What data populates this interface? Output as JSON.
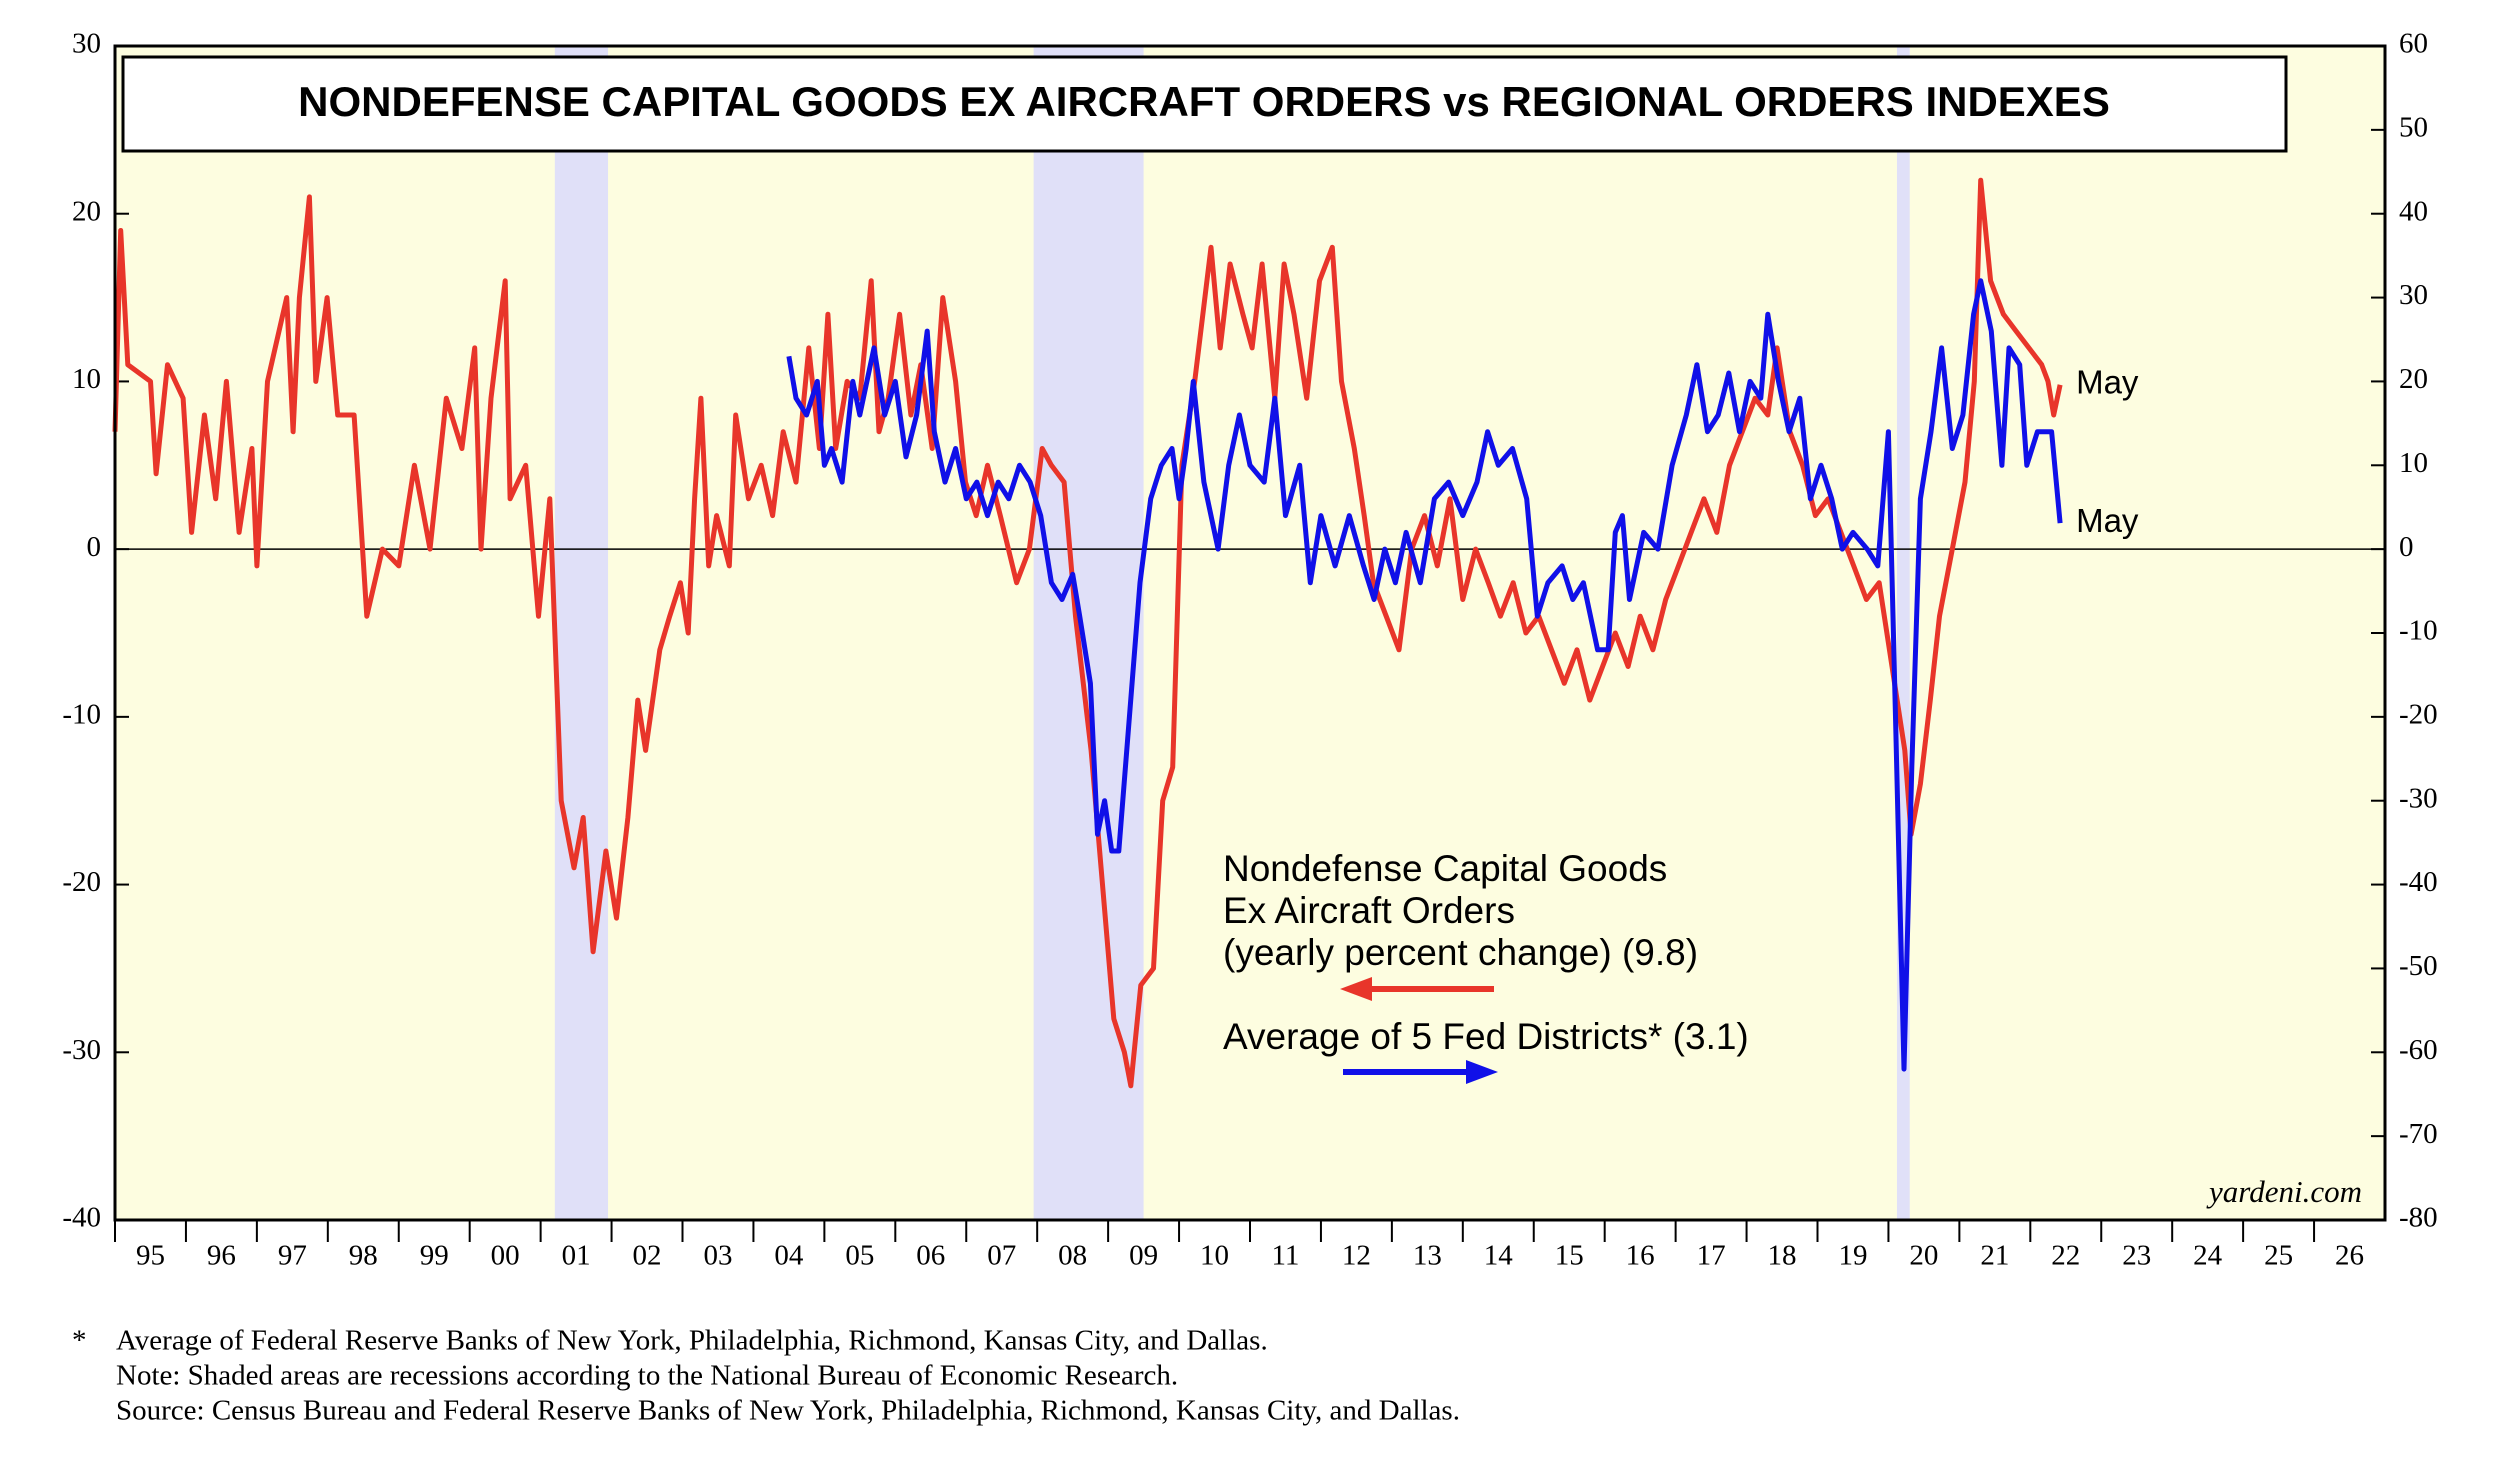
{
  "chart_data": {
    "type": "line",
    "title": "NONDEFENSE CAPITAL GOODS EX AIRCRAFT ORDERS vs REGIONAL ORDERS INDEXES",
    "xlim": [
      1995,
      2027
    ],
    "xticks": [
      {
        "value": 1995,
        "label": "95"
      },
      {
        "value": 1996,
        "label": "96"
      },
      {
        "value": 1997,
        "label": "97"
      },
      {
        "value": 1998,
        "label": "98"
      },
      {
        "value": 1999,
        "label": "99"
      },
      {
        "value": 2000,
        "label": "00"
      },
      {
        "value": 2001,
        "label": "01"
      },
      {
        "value": 2002,
        "label": "02"
      },
      {
        "value": 2003,
        "label": "03"
      },
      {
        "value": 2004,
        "label": "04"
      },
      {
        "value": 2005,
        "label": "05"
      },
      {
        "value": 2006,
        "label": "06"
      },
      {
        "value": 2007,
        "label": "07"
      },
      {
        "value": 2008,
        "label": "08"
      },
      {
        "value": 2009,
        "label": "09"
      },
      {
        "value": 2010,
        "label": "10"
      },
      {
        "value": 2011,
        "label": "11"
      },
      {
        "value": 2012,
        "label": "12"
      },
      {
        "value": 2013,
        "label": "13"
      },
      {
        "value": 2014,
        "label": "14"
      },
      {
        "value": 2015,
        "label": "15"
      },
      {
        "value": 2016,
        "label": "16"
      },
      {
        "value": 2017,
        "label": "17"
      },
      {
        "value": 2018,
        "label": "18"
      },
      {
        "value": 2019,
        "label": "19"
      },
      {
        "value": 2020,
        "label": "20"
      },
      {
        "value": 2021,
        "label": "21"
      },
      {
        "value": 2022,
        "label": "22"
      },
      {
        "value": 2023,
        "label": "23"
      },
      {
        "value": 2024,
        "label": "24"
      },
      {
        "value": 2025,
        "label": "25"
      },
      {
        "value": 2026,
        "label": "26"
      }
    ],
    "ylim": [
      -40,
      30
    ],
    "yticks": [
      -40,
      -30,
      -20,
      -10,
      0,
      10,
      20,
      30
    ],
    "y2lim": [
      -80,
      60
    ],
    "y2ticks": [
      -80,
      -70,
      -60,
      -50,
      -40,
      -30,
      -20,
      -10,
      0,
      10,
      20,
      30,
      40,
      50,
      60
    ],
    "hline": 0,
    "recessions": [
      [
        2001.2,
        2001.95
      ],
      [
        2007.95,
        2009.5
      ],
      [
        2020.12,
        2020.3
      ]
    ],
    "recession_color": "#e0e0f8",
    "background": "#fdfde0",
    "series": [
      {
        "name": [
          "Nondefense Capital Goods",
          "Ex Aircraft Orders",
          "(yearly percent change) (9.8)"
        ],
        "color": "#e8352a",
        "end_label": "May",
        "x": [
          1995.0,
          1995.08,
          1995.18,
          1995.5,
          1995.58,
          1995.74,
          1995.96,
          1996.08,
          1996.26,
          1996.42,
          1996.57,
          1996.75,
          1996.93,
          1997.0,
          1997.15,
          1997.42,
          1997.51,
          1997.6,
          1997.74,
          1997.83,
          1997.99,
          1998.14,
          1998.37,
          1998.55,
          1998.77,
          1999.0,
          1999.22,
          1999.44,
          1999.67,
          1999.89,
          2000.07,
          2000.16,
          2000.3,
          2000.5,
          2000.57,
          2000.79,
          2000.97,
          2001.13,
          2001.29,
          2001.47,
          2001.6,
          2001.74,
          2001.92,
          2002.07,
          2002.23,
          2002.37,
          2002.48,
          2002.68,
          2002.82,
          2002.97,
          2003.08,
          2003.17,
          2003.26,
          2003.37,
          2003.48,
          2003.66,
          2003.75,
          2003.93,
          2004.11,
          2004.27,
          2004.42,
          2004.6,
          2004.78,
          2004.93,
          2005.05,
          2005.16,
          2005.32,
          2005.5,
          2005.66,
          2005.77,
          2005.9,
          2006.06,
          2006.22,
          2006.36,
          2006.52,
          2006.67,
          2006.85,
          2006.99,
          2007.14,
          2007.3,
          2007.48,
          2007.71,
          2007.89,
          2008.07,
          2008.2,
          2008.38,
          2008.54,
          2008.76,
          2008.92,
          2009.08,
          2009.23,
          2009.32,
          2009.46,
          2009.64,
          2009.77,
          2009.91,
          2010.04,
          2010.22,
          2010.45,
          2010.58,
          2010.72,
          2010.9,
          2011.03,
          2011.17,
          2011.35,
          2011.48,
          2011.62,
          2011.8,
          2011.98,
          2012.16,
          2012.29,
          2012.47,
          2012.61,
          2012.74,
          2012.92,
          2013.1,
          2013.28,
          2013.46,
          2013.64,
          2013.82,
          2014.0,
          2014.18,
          2014.36,
          2014.53,
          2014.71,
          2014.89,
          2015.07,
          2015.25,
          2015.43,
          2015.61,
          2015.79,
          2015.97,
          2016.15,
          2016.33,
          2016.5,
          2016.68,
          2016.86,
          2017.04,
          2017.22,
          2017.4,
          2017.58,
          2017.76,
          2017.94,
          2018.12,
          2018.3,
          2018.43,
          2018.61,
          2018.79,
          2018.97,
          2019.15,
          2019.33,
          2019.51,
          2019.69,
          2019.87,
          2020.05,
          2020.23,
          2020.32,
          2020.45,
          2020.59,
          2020.72,
          2020.9,
          2021.08,
          2021.21,
          2021.3,
          2021.44,
          2021.62,
          2021.8,
          2021.98,
          2022.16,
          2022.25,
          2022.33,
          2022.42
        ],
        "values": [
          7,
          19,
          11,
          10,
          4.5,
          11,
          9,
          1,
          8,
          3,
          10,
          1,
          6,
          -1,
          10,
          15,
          7,
          15,
          21,
          10,
          15,
          8,
          8,
          -4,
          0,
          -1,
          5,
          0,
          9,
          6,
          12,
          0,
          9,
          16,
          3,
          5,
          -4,
          3,
          -15,
          -19,
          -16,
          -24,
          -18,
          -22,
          -16,
          -9,
          -12,
          -6,
          -4,
          -2,
          -5,
          3,
          9,
          -1,
          2,
          -1,
          8,
          3,
          5,
          2,
          7,
          4,
          12,
          6,
          14,
          6,
          10,
          9,
          16,
          7,
          9,
          14,
          8,
          11,
          6,
          15,
          10,
          4,
          2,
          5,
          2,
          -2,
          0,
          6,
          5,
          4,
          -4,
          -12,
          -20,
          -28,
          -30,
          -32,
          -26,
          -25,
          -15,
          -13,
          5,
          10,
          18,
          12,
          17,
          14,
          12,
          17,
          9,
          17,
          14,
          9,
          16,
          18,
          10,
          6,
          2,
          -2,
          -4,
          -6,
          0,
          2,
          -1,
          3,
          -3,
          0,
          -2,
          -4,
          -2,
          -5,
          -4,
          -6,
          -8,
          -6,
          -9,
          -7,
          -5,
          -7,
          -4,
          -6,
          -3,
          -1,
          1,
          3,
          1,
          5,
          7,
          9,
          8,
          12,
          7,
          5,
          2,
          3,
          1,
          -1,
          -3,
          -2,
          -7,
          -12,
          -17,
          -14,
          -9,
          -4,
          0,
          4,
          10,
          22,
          16,
          14,
          13,
          12,
          11,
          10,
          8,
          9.8
        ]
      },
      {
        "name": [
          "Average of 5 Fed Districts* (3.1)"
        ],
        "color": "#1010e8",
        "axis": "y2",
        "end_label": "May",
        "x": [
          2004.5,
          2004.6,
          2004.75,
          2004.9,
          2005.0,
          2005.1,
          2005.25,
          2005.4,
          2005.5,
          2005.7,
          2005.85,
          2006.0,
          2006.15,
          2006.3,
          2006.45,
          2006.55,
          2006.7,
          2006.85,
          2007.0,
          2007.15,
          2007.3,
          2007.45,
          2007.6,
          2007.75,
          2007.9,
          2008.05,
          2008.2,
          2008.35,
          2008.5,
          2008.6,
          2008.75,
          2008.85,
          2008.95,
          2009.05,
          2009.15,
          2009.3,
          2009.45,
          2009.6,
          2009.75,
          2009.9,
          2010.0,
          2010.1,
          2010.2,
          2010.35,
          2010.55,
          2010.7,
          2010.85,
          2011.0,
          2011.2,
          2011.35,
          2011.5,
          2011.7,
          2011.85,
          2012.0,
          2012.2,
          2012.4,
          2012.6,
          2012.75,
          2012.9,
          2013.05,
          2013.2,
          2013.4,
          2013.6,
          2013.8,
          2014.0,
          2014.2,
          2014.35,
          2014.5,
          2014.7,
          2014.9,
          2015.05,
          2015.2,
          2015.4,
          2015.55,
          2015.7,
          2015.9,
          2016.05,
          2016.15,
          2016.25,
          2016.35,
          2016.55,
          2016.75,
          2016.95,
          2017.15,
          2017.3,
          2017.45,
          2017.6,
          2017.75,
          2017.9,
          2018.05,
          2018.2,
          2018.3,
          2018.45,
          2018.6,
          2018.75,
          2018.9,
          2019.05,
          2019.2,
          2019.35,
          2019.5,
          2019.7,
          2019.85,
          2020.0,
          2020.1,
          2020.22,
          2020.33,
          2020.45,
          2020.6,
          2020.75,
          2020.9,
          2021.05,
          2021.2,
          2021.3,
          2021.45,
          2021.6,
          2021.7,
          2021.85,
          2021.95,
          2022.1,
          2022.3,
          2022.42
        ],
        "values": [
          23,
          18,
          16,
          20,
          10,
          12,
          8,
          20,
          16,
          24,
          16,
          20,
          11,
          16,
          26,
          14,
          8,
          12,
          6,
          8,
          4,
          8,
          6,
          10,
          8,
          4,
          -4,
          -6,
          -3,
          -8,
          -16,
          -34,
          -30,
          -36,
          -36,
          -20,
          -4,
          6,
          10,
          12,
          6,
          12,
          20,
          8,
          0,
          10,
          16,
          10,
          8,
          18,
          4,
          10,
          -4,
          4,
          -2,
          4,
          -2,
          -6,
          0,
          -4,
          2,
          -4,
          6,
          8,
          4,
          8,
          14,
          10,
          12,
          6,
          -8,
          -4,
          -2,
          -6,
          -4,
          -12,
          -12,
          2,
          4,
          -6,
          2,
          0,
          10,
          16,
          22,
          14,
          16,
          21,
          14,
          20,
          18,
          28,
          20,
          14,
          18,
          6,
          10,
          6,
          0,
          2,
          0,
          -2,
          14,
          -20,
          -62,
          -26,
          6,
          14,
          24,
          12,
          16,
          28,
          32,
          26,
          10,
          24,
          22,
          10,
          14,
          14,
          3.1
        ]
      }
    ],
    "source_mark": "yardeni.com",
    "footnotes": [
      "Average of Federal Reserve Banks of New York, Philadelphia, Richmond, Kansas City, and Dallas.",
      "Note: Shaded areas are recessions according to the National Bureau of Economic Research.",
      "Source: Census Bureau and Federal Reserve Banks of New York, Philadelphia, Richmond, Kansas City, and Dallas."
    ],
    "footnote_marker": "*"
  }
}
